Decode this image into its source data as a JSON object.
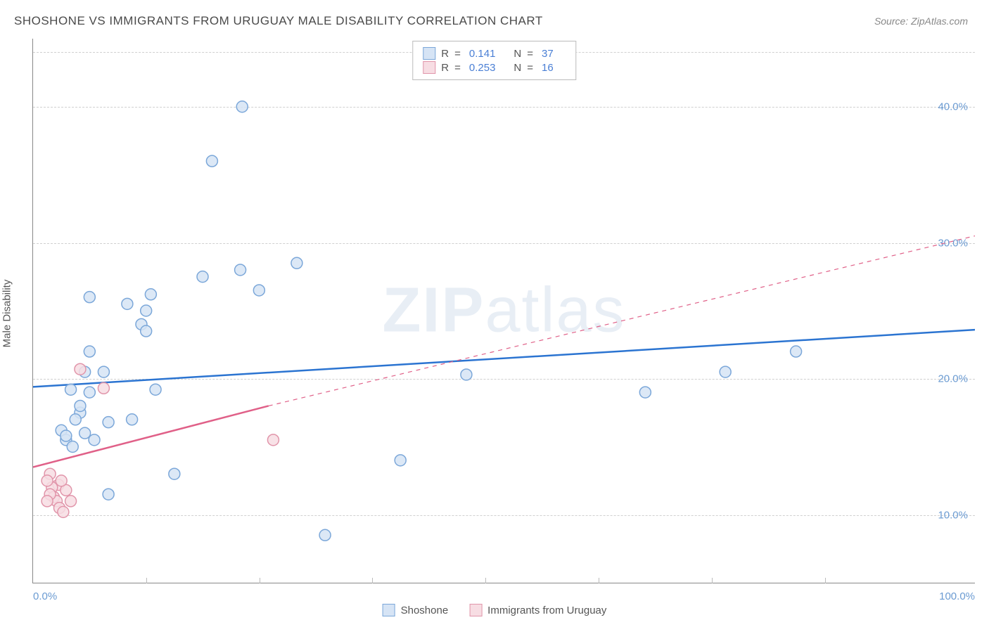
{
  "title": "SHOSHONE VS IMMIGRANTS FROM URUGUAY MALE DISABILITY CORRELATION CHART",
  "source": "Source: ZipAtlas.com",
  "ylabel": "Male Disability",
  "watermark": "ZIPatlas",
  "chart": {
    "type": "scatter",
    "xlim": [
      0,
      100
    ],
    "ylim": [
      5,
      45
    ],
    "xticks": [
      0,
      12,
      24,
      36,
      48,
      60,
      72,
      84,
      100
    ],
    "xtick_labels": {
      "0": "0.0%",
      "100": "100.0%"
    },
    "yticks": [
      10,
      20,
      30,
      40
    ],
    "ytick_labels": {
      "10": "10.0%",
      "20": "20.0%",
      "30": "30.0%",
      "40": "40.0%"
    },
    "background_color": "#ffffff",
    "grid_color": "#d0d0d0",
    "axis_color": "#888888",
    "tick_label_color": "#6b9bd2"
  },
  "series": [
    {
      "name": "Shoshone",
      "marker_fill": "#d6e4f5",
      "marker_stroke": "#7ba7d9",
      "marker_radius": 8,
      "line_color": "#2b74d1",
      "line_width": 2.5,
      "r_value": "0.141",
      "n_value": "37",
      "trend": {
        "x1": 0,
        "y1": 19.4,
        "x2": 100,
        "y2": 23.6
      },
      "points": [
        [
          22.2,
          40.0
        ],
        [
          19.0,
          36.0
        ],
        [
          28.0,
          28.5
        ],
        [
          22.0,
          28.0
        ],
        [
          18.0,
          27.5
        ],
        [
          24.0,
          26.5
        ],
        [
          6.0,
          26.0
        ],
        [
          10.0,
          25.5
        ],
        [
          12.0,
          25.0
        ],
        [
          11.5,
          24.0
        ],
        [
          12.0,
          23.5
        ],
        [
          81.0,
          22.0
        ],
        [
          6.0,
          22.0
        ],
        [
          5.5,
          20.5
        ],
        [
          7.5,
          20.5
        ],
        [
          73.5,
          20.5
        ],
        [
          46.0,
          20.3
        ],
        [
          13.0,
          19.2
        ],
        [
          65.0,
          19.0
        ],
        [
          4.0,
          19.2
        ],
        [
          6.0,
          19.0
        ],
        [
          5.0,
          17.5
        ],
        [
          4.5,
          17.0
        ],
        [
          10.5,
          17.0
        ],
        [
          8.0,
          16.8
        ],
        [
          3.0,
          16.2
        ],
        [
          5.5,
          16.0
        ],
        [
          3.5,
          15.5
        ],
        [
          6.5,
          15.5
        ],
        [
          4.2,
          15.0
        ],
        [
          39.0,
          14.0
        ],
        [
          15.0,
          13.0
        ],
        [
          8.0,
          11.5
        ],
        [
          3.5,
          15.8
        ],
        [
          31.0,
          8.5
        ],
        [
          12.5,
          26.2
        ],
        [
          5.0,
          18.0
        ]
      ]
    },
    {
      "name": "Immigrants from Uruguay",
      "marker_fill": "#f7dde3",
      "marker_stroke": "#e195aa",
      "marker_radius": 8,
      "line_color": "#e06088",
      "line_width": 2.5,
      "r_value": "0.253",
      "n_value": "16",
      "trend": {
        "x1": 0,
        "y1": 13.5,
        "x2": 25,
        "y2": 18.0
      },
      "trend_ext": {
        "x1": 25,
        "y1": 18.0,
        "x2": 100,
        "y2": 30.5
      },
      "points": [
        [
          5.0,
          20.7
        ],
        [
          7.5,
          19.3
        ],
        [
          25.5,
          15.5
        ],
        [
          2.7,
          12.2
        ],
        [
          1.8,
          13.0
        ],
        [
          2.0,
          12.0
        ],
        [
          3.5,
          11.8
        ],
        [
          1.5,
          12.5
        ],
        [
          3.0,
          12.5
        ],
        [
          2.2,
          11.3
        ],
        [
          2.5,
          11.0
        ],
        [
          1.8,
          11.5
        ],
        [
          2.8,
          10.5
        ],
        [
          3.2,
          10.2
        ],
        [
          4.0,
          11.0
        ],
        [
          1.5,
          11.0
        ]
      ]
    }
  ],
  "legend_top_labels": {
    "r": "R",
    "n": "N",
    "eq": "="
  },
  "legend_bottom": [
    {
      "label": "Shoshone",
      "fill": "#d6e4f5",
      "stroke": "#7ba7d9"
    },
    {
      "label": "Immigrants from Uruguay",
      "fill": "#f7dde3",
      "stroke": "#e195aa"
    }
  ]
}
